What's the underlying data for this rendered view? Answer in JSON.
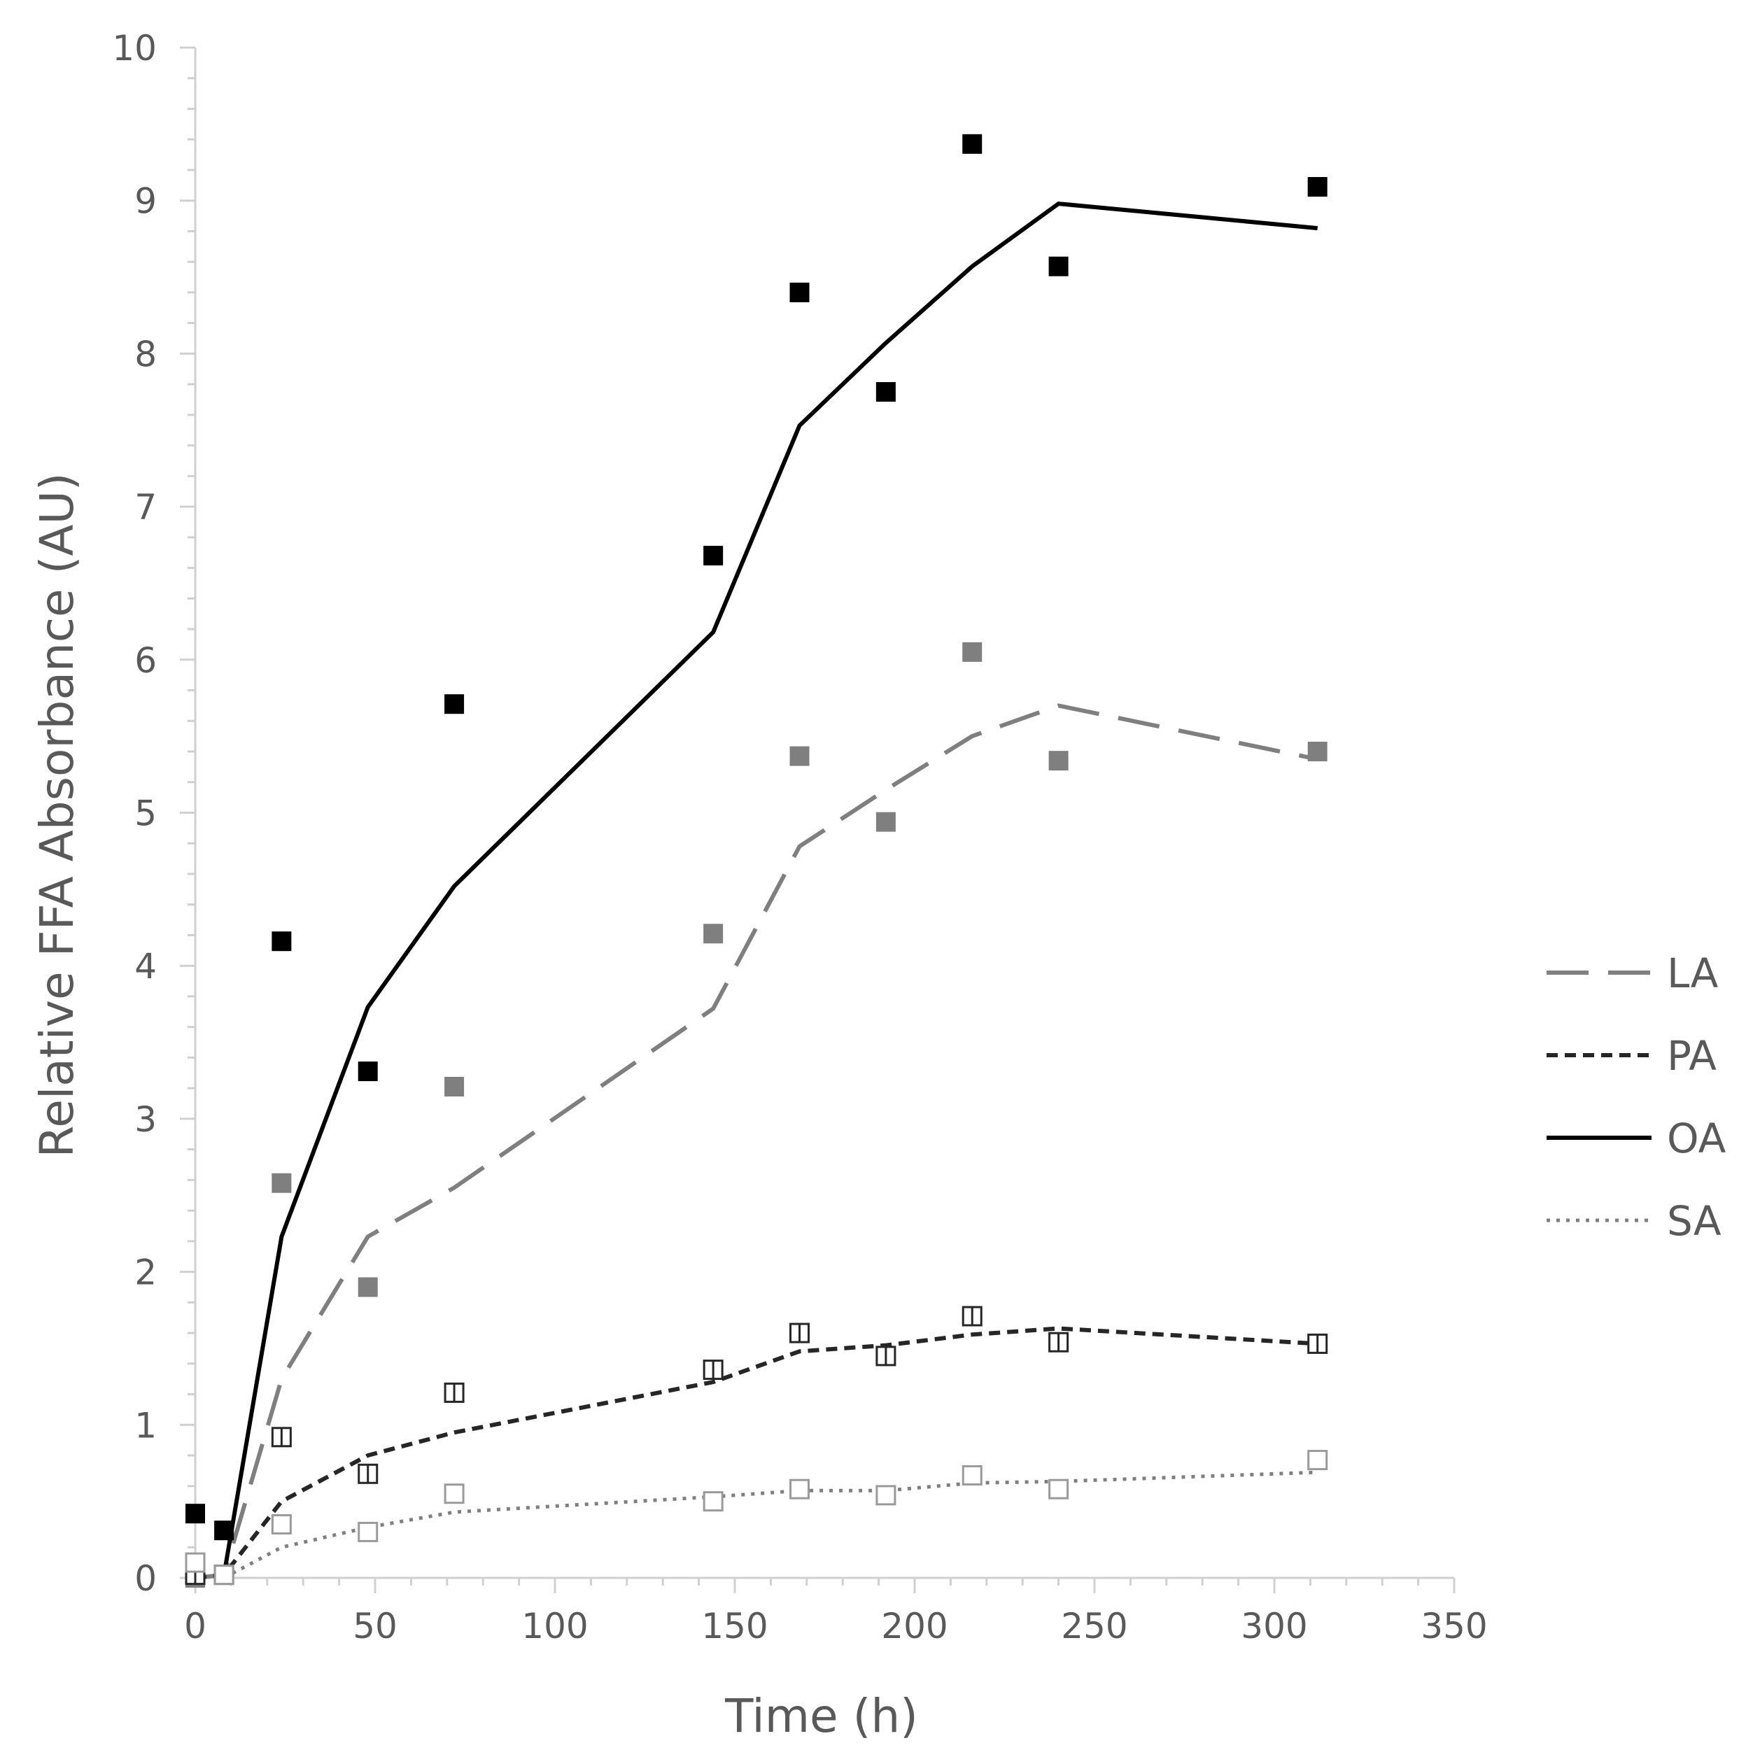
{
  "chart_data": {
    "type": "scatter",
    "title": "",
    "xlabel": "Time (h)",
    "ylabel": "Relative FFA Absorbance (AU)",
    "xlim": [
      0,
      350
    ],
    "ylim": [
      0,
      10
    ],
    "x_ticks": [
      0,
      50,
      100,
      150,
      200,
      250,
      300,
      350
    ],
    "y_ticks": [
      0,
      1,
      2,
      3,
      4,
      5,
      6,
      7,
      8,
      9,
      10
    ],
    "legend_position": "right",
    "series": [
      {
        "name": "LA",
        "line_style": "long-dash",
        "color": "#7f7f7f",
        "marker": "filled-square",
        "points_x": [
          0,
          8,
          24,
          48,
          72,
          144,
          168,
          192,
          216,
          240,
          312
        ],
        "points_y": [
          0.0,
          0.02,
          2.58,
          1.9,
          3.21,
          4.21,
          5.37,
          4.94,
          6.05,
          5.34,
          5.4
        ],
        "fit_x": [
          0,
          8,
          24,
          48,
          72,
          144,
          168,
          192,
          216,
          240,
          312
        ],
        "fit_y": [
          0.0,
          0.02,
          1.3,
          2.23,
          2.55,
          3.72,
          4.78,
          5.15,
          5.5,
          5.7,
          5.35
        ]
      },
      {
        "name": "PA",
        "line_style": "short-dash",
        "color": "#262626",
        "marker": "open-square-with-bar",
        "points_x": [
          0,
          8,
          24,
          48,
          72,
          144,
          168,
          192,
          216,
          240,
          312
        ],
        "points_y": [
          0.02,
          0.02,
          0.92,
          0.68,
          1.21,
          1.36,
          1.6,
          1.45,
          1.71,
          1.54,
          1.53
        ],
        "fit_x": [
          0,
          8,
          24,
          48,
          72,
          144,
          168,
          192,
          216,
          240,
          312
        ],
        "fit_y": [
          0.0,
          0.02,
          0.5,
          0.8,
          0.95,
          1.28,
          1.48,
          1.52,
          1.59,
          1.63,
          1.53
        ]
      },
      {
        "name": "OA",
        "line_style": "solid",
        "color": "#000000",
        "marker": "filled-square",
        "points_x": [
          0,
          8,
          24,
          48,
          72,
          144,
          168,
          192,
          216,
          240,
          312
        ],
        "points_y": [
          0.42,
          0.31,
          4.16,
          3.31,
          5.71,
          6.68,
          8.4,
          7.75,
          9.37,
          8.57,
          9.09
        ],
        "fit_x": [
          8,
          24,
          48,
          72,
          144,
          168,
          192,
          216,
          240,
          312
        ],
        "fit_y": [
          0.02,
          2.23,
          3.73,
          4.52,
          6.18,
          7.53,
          8.07,
          8.57,
          8.98,
          8.82
        ]
      },
      {
        "name": "SA",
        "line_style": "dotted",
        "color": "#7f7f7f",
        "marker": "open-square",
        "points_x": [
          0,
          8,
          24,
          48,
          72,
          144,
          168,
          192,
          216,
          240,
          312
        ],
        "points_y": [
          0.1,
          0.02,
          0.35,
          0.3,
          0.55,
          0.5,
          0.58,
          0.54,
          0.67,
          0.58,
          0.77
        ],
        "fit_x": [
          8,
          24,
          48,
          72,
          144,
          168,
          192,
          216,
          240,
          312
        ],
        "fit_y": [
          0.0,
          0.2,
          0.33,
          0.43,
          0.53,
          0.57,
          0.57,
          0.62,
          0.63,
          0.69
        ]
      }
    ]
  }
}
